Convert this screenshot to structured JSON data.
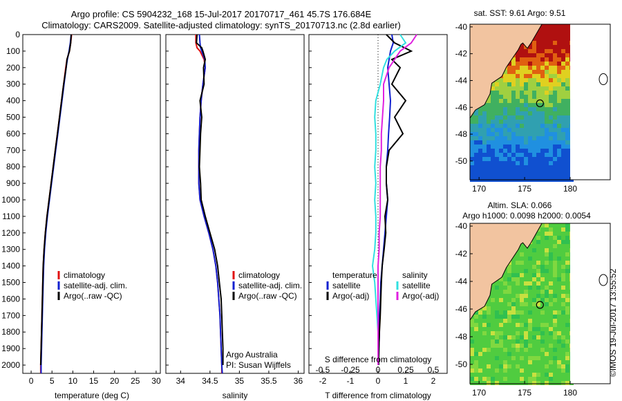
{
  "header": {
    "line1": "Argo profile: CS 5904232_168 15-Jul-2017 20170717_461 45.7S 176.684E",
    "line2": "Climatology: CARS2009. Satellite-adjusted climatology: synTS_20170713.nc (2.8d earlier)"
  },
  "colors": {
    "climatology": "#e01010",
    "satellite": "#1020d0",
    "argo": "#000000",
    "sat_salinity": "#30e0e0",
    "argo_salinity": "#e020e0"
  },
  "chart_data": [
    {
      "type": "line",
      "panel": "temperature",
      "xlabel": "temperature (deg C)",
      "ylabel": "",
      "xlim": [
        -2,
        31
      ],
      "ylim": [
        2050,
        0
      ],
      "xticks": [
        "0",
        "5",
        "10",
        "15",
        "20",
        "25",
        "30"
      ],
      "yticks": [
        "0",
        "100",
        "200",
        "300",
        "400",
        "500",
        "600",
        "700",
        "800",
        "900",
        "1000",
        "1100",
        "1200",
        "1300",
        "1400",
        "1500",
        "1600",
        "1700",
        "1800",
        "1900",
        "2000"
      ],
      "legend": [
        "climatology",
        "satellite-adj. clim.",
        "Argo(..raw -QC)"
      ],
      "depth": [
        0,
        50,
        100,
        150,
        200,
        300,
        400,
        500,
        600,
        700,
        800,
        900,
        1000,
        1100,
        1200,
        1300,
        1400,
        1500,
        1600,
        1700,
        1800,
        1900,
        2000,
        2050
      ],
      "series": [
        {
          "name": "climatology",
          "values": [
            9.7,
            9.5,
            9.2,
            8.6,
            8.3,
            7.8,
            7.3,
            6.8,
            6.3,
            5.8,
            5.3,
            4.8,
            4.3,
            3.8,
            3.4,
            3.1,
            2.9,
            2.8,
            2.7,
            2.6,
            2.5,
            2.4,
            2.3,
            2.3
          ]
        },
        {
          "name": "satellite-adj. clim.",
          "values": [
            9.6,
            9.4,
            9.1,
            8.7,
            8.4,
            7.9,
            7.4,
            6.9,
            6.4,
            5.9,
            5.4,
            4.9,
            4.4,
            3.9,
            3.5,
            3.2,
            3.0,
            2.9,
            2.8,
            2.7,
            2.6,
            2.5,
            2.4,
            2.4
          ]
        },
        {
          "name": "Argo(..raw -QC)",
          "values": [
            9.6,
            9.5,
            9.2,
            8.6,
            8.4,
            7.8,
            7.3,
            6.8,
            6.3,
            5.8,
            5.3,
            4.8,
            4.3,
            3.8,
            3.4,
            3.1,
            2.9,
            2.8,
            2.7,
            2.6,
            2.5,
            2.4,
            2.3,
            null
          ]
        }
      ]
    },
    {
      "type": "line",
      "panel": "salinity",
      "xlabel": "salinity",
      "ylabel": "",
      "xlim": [
        33.75,
        36.1
      ],
      "ylim": [
        2050,
        0
      ],
      "xticks": [
        "34",
        "34.5",
        "35",
        "35.5",
        "36"
      ],
      "legend": [
        "climatology",
        "satellite-adj. clim.",
        "Argo(..raw -QC)"
      ],
      "depth": [
        0,
        50,
        80,
        100,
        150,
        200,
        300,
        400,
        500,
        600,
        700,
        800,
        900,
        1000,
        1100,
        1200,
        1300,
        1400,
        1500,
        1600,
        1700,
        1800,
        1900,
        2000,
        2050
      ],
      "series": [
        {
          "name": "climatology",
          "values": [
            34.26,
            34.26,
            34.28,
            34.33,
            34.4,
            34.42,
            34.38,
            34.35,
            34.33,
            34.32,
            34.31,
            34.31,
            34.31,
            34.33,
            34.4,
            34.48,
            34.55,
            34.6,
            34.63,
            34.65,
            34.67,
            34.68,
            34.69,
            34.7,
            34.7
          ]
        },
        {
          "name": "satellite-adj. clim.",
          "values": [
            34.32,
            34.33,
            34.34,
            34.36,
            34.41,
            34.42,
            34.38,
            34.35,
            34.33,
            34.32,
            34.31,
            34.31,
            34.31,
            34.33,
            34.4,
            34.48,
            34.55,
            34.6,
            34.63,
            34.65,
            34.67,
            34.68,
            34.69,
            34.7,
            34.71
          ]
        },
        {
          "name": "Argo(..raw -QC)",
          "values": [
            34.28,
            34.27,
            34.36,
            34.38,
            34.42,
            34.39,
            34.4,
            34.33,
            34.36,
            34.34,
            34.33,
            34.32,
            34.34,
            34.35,
            34.42,
            34.5,
            34.58,
            34.63,
            34.66,
            34.69,
            34.7,
            34.71,
            34.72,
            34.72,
            null
          ]
        }
      ]
    },
    {
      "type": "line",
      "panel": "differences",
      "xlabel": "T difference from climatology",
      "top_label": "S difference from climatology",
      "xlim": [
        -2.5,
        2.5
      ],
      "ylim": [
        2050,
        0
      ],
      "xticks": [
        "-2",
        "-1",
        "0",
        "1",
        "2"
      ],
      "xticks_s": [
        "-0.5",
        "-0.25",
        "0",
        "0.25",
        "0.5"
      ],
      "legend_headers": [
        "temperature",
        "salinity"
      ],
      "legend": [
        "satellite",
        "Argo(-adj)",
        "satellite",
        "Argo(-adj)"
      ],
      "depth": [
        0,
        50,
        100,
        150,
        200,
        300,
        400,
        500,
        600,
        700,
        800,
        900,
        1000,
        1100,
        1200,
        1300,
        1400,
        1500,
        1600,
        1700,
        1800,
        1900,
        2000
      ],
      "series": [
        {
          "name": "T satellite",
          "values": [
            0.5,
            0.55,
            0.45,
            0.4,
            0.35,
            0.4,
            0.45,
            0.42,
            0.38,
            0.35,
            0.3,
            0.3,
            0.35,
            0.3,
            0.25,
            0.2,
            0.15,
            0.1,
            0.08,
            0.05,
            0.05,
            0.03,
            0.02
          ]
        },
        {
          "name": "T Argo(-adj)",
          "values": [
            0.3,
            0.6,
            1.2,
            0.5,
            0.8,
            0.5,
            1.0,
            0.6,
            0.9,
            0.4,
            0.3,
            0.3,
            0.35,
            0.25,
            0.28,
            0.22,
            0.15,
            0.12,
            0.1,
            0.08,
            0.05,
            0.03,
            0.02
          ]
        },
        {
          "name": "S satellite",
          "values": [
            0.2,
            0.25,
            0.15,
            0.08,
            0.05,
            0.02,
            -0.02,
            -0.03,
            -0.02,
            -0.02,
            -0.03,
            -0.02,
            -0.03,
            -0.02,
            -0.02,
            -0.03,
            -0.05,
            -0.03,
            -0.02,
            -0.01,
            0.0,
            0.0,
            0.0
          ]
        },
        {
          "name": "S Argo(-adj)",
          "values": [
            0.35,
            0.3,
            0.2,
            0.15,
            0.1,
            0.05,
            0.05,
            0.04,
            0.03,
            0.03,
            0.02,
            0.02,
            0.02,
            0.02,
            0.01,
            0.01,
            0.0,
            0.0,
            0.0,
            0.0,
            0.0,
            0.0,
            0.0
          ]
        }
      ],
      "annotation_lines": [
        "Argo Australia",
        "PI: Susan Wijffels"
      ]
    }
  ],
  "maps": {
    "sst": {
      "title": "sat. SST: 9.61 Argo: 9.51",
      "xticks": [
        "170",
        "175",
        "180"
      ],
      "yticks": [
        "-40",
        "-42",
        "-44",
        "-46",
        "-48",
        "-50"
      ],
      "float_lon": 176.684,
      "float_lat": -45.7
    },
    "sla": {
      "title1": "Altim. SLA: 0.066",
      "title2": "Argo h1000: 0.0098 h2000: 0.0054",
      "xticks": [
        "170",
        "175",
        "180"
      ],
      "yticks": [
        "-40",
        "-42",
        "-44",
        "-46",
        "-48",
        "-50"
      ],
      "float_lon": 176.684,
      "float_lat": -45.7
    }
  },
  "footer": {
    "credit": "©IMOS 19-Jul-2017 13:55:52"
  }
}
